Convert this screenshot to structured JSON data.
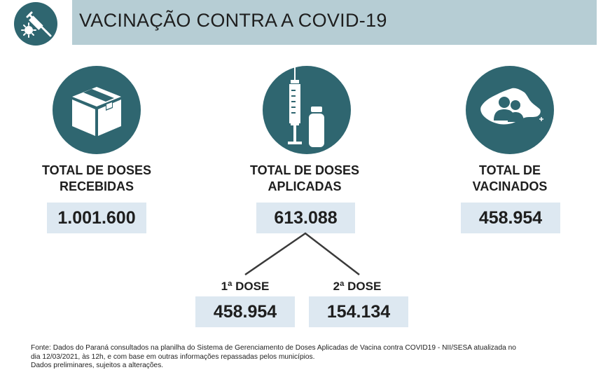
{
  "header": {
    "title": "VACINAÇÃO CONTRA A COVID-19",
    "icon": "syringe-virus-icon"
  },
  "stats": {
    "received": {
      "label_line1": "TOTAL DE DOSES",
      "label_line2": "RECEBIDAS",
      "value": "1.001.600",
      "icon": "box-icon"
    },
    "applied": {
      "label_line1": "TOTAL DE DOSES",
      "label_line2": "APLICADAS",
      "value": "613.088",
      "icon": "syringe-vial-icon"
    },
    "vaccinated": {
      "label_line1": "TOTAL DE",
      "label_line2": "VACINADOS",
      "value": "458.954",
      "icon": "people-map-icon"
    }
  },
  "doses": {
    "first": {
      "label": "1ª DOSE",
      "value": "458.954"
    },
    "second": {
      "label": "2ª DOSE",
      "value": "154.134"
    }
  },
  "footer": {
    "line1": "Fonte: Dados do Paraná consultados na planilha do Sistema de Gerenciamento de Doses Aplicadas de Vacina contra COVID19 - NII/SESA atualizada no",
    "line2": "dia 12/03/2021, às 12h, e com base em outras informações repassadas pelos municípios.",
    "line3": "Dados preliminares, sujeitos a alterações."
  },
  "colors": {
    "teal": "#2f6670",
    "header_bar": "#b6cdd4",
    "value_box": "#dde8f1"
  }
}
